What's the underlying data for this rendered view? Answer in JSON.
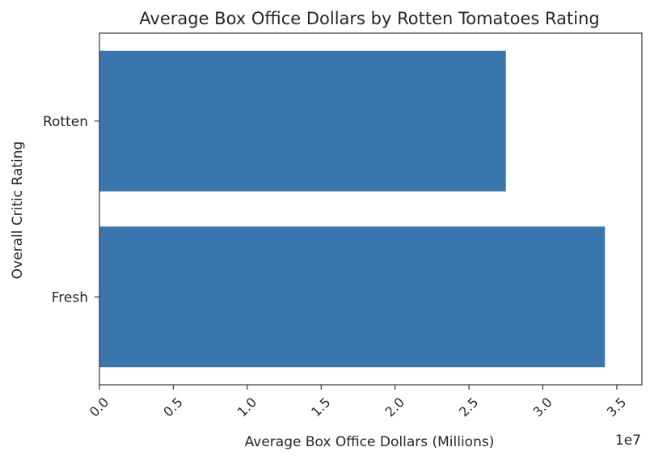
{
  "chart_data": {
    "type": "bar",
    "orientation": "horizontal",
    "title": "Average Box Office Dollars by Rotten Tomatoes Rating",
    "xlabel": "Average Box Office Dollars (Millions)",
    "ylabel": "Overall Critic Rating",
    "categories": [
      "Rotten",
      "Fresh"
    ],
    "values": [
      27500000,
      34200000
    ],
    "xlim": [
      0,
      36700000
    ],
    "x_ticks": [
      0,
      5000000,
      10000000,
      15000000,
      20000000,
      25000000,
      30000000,
      35000000
    ],
    "x_tick_labels": [
      "0.0",
      "0.5",
      "1.0",
      "1.5",
      "2.0",
      "2.5",
      "3.0",
      "3.5"
    ],
    "x_tick_label_rotation": "45 degrees",
    "x_offset_label": "1e7",
    "bar_color": "#3a76ae",
    "grid": false,
    "legend": "none"
  }
}
